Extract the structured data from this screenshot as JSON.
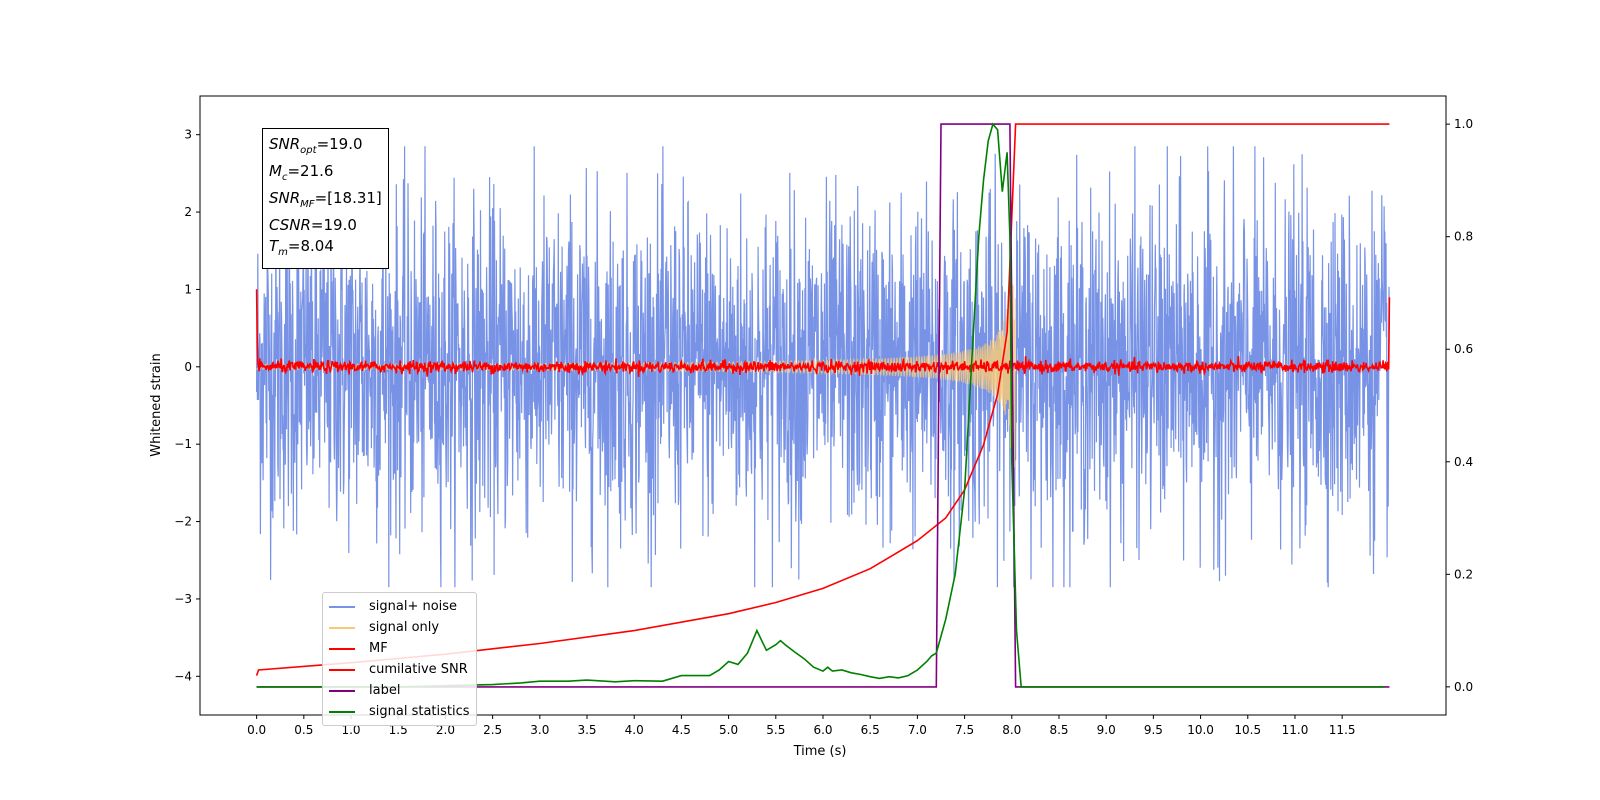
{
  "chart_data": {
    "type": "line",
    "xlabel": "Time (s)",
    "ylabel": "Whitened strain",
    "xlim": [
      -0.6,
      12.6
    ],
    "ylim": [
      -4.5,
      3.5
    ],
    "ylim_right": [
      -0.05,
      1.05
    ],
    "x_ticks": [
      "0.0",
      "0.5",
      "1.0",
      "1.5",
      "2.0",
      "2.5",
      "3.0",
      "3.5",
      "4.0",
      "4.5",
      "5.0",
      "5.5",
      "6.0",
      "6.5",
      "7.0",
      "7.5",
      "8.0",
      "8.5",
      "9.0",
      "9.5",
      "10.0",
      "10.5",
      "11.0",
      "11.5"
    ],
    "y_ticks": [
      "3",
      "2",
      "1",
      "0",
      "−1",
      "−2",
      "−3",
      "−4"
    ],
    "y_right_ticks": [
      "1.0",
      "0.8",
      "0.6",
      "0.4",
      "0.2",
      "0.0"
    ],
    "legend_position": "lower-left",
    "grid": false,
    "annotations": {
      "snr_opt": "19.0",
      "mc": "21.6",
      "snr_mf": "[18.31]",
      "csnr": "19.0",
      "tm": "8.04"
    },
    "series": [
      {
        "name": "signal+ noise",
        "color": "#7893e6",
        "axis": "left",
        "kind": "noise",
        "time_range": [
          0.0,
          12.0
        ],
        "typical_amplitude": 1.4,
        "peak_amplitude": 2.85
      },
      {
        "name": "signal only",
        "color": "#f6c97a",
        "axis": "left",
        "kind": "chirp",
        "time_range": [
          0.0,
          8.04
        ],
        "peak_amplitude": 1.3
      },
      {
        "name": "MF",
        "color": "#ff0000",
        "axis": "left",
        "kind": "noise",
        "time_range": [
          0.0,
          12.0
        ],
        "typical_amplitude": 0.07
      },
      {
        "name": "cumilative SNR",
        "color": "#ff0000",
        "axis": "right",
        "x": [
          0.0,
          0.02,
          1.0,
          2.0,
          3.0,
          4.0,
          5.0,
          5.5,
          6.0,
          6.5,
          7.0,
          7.3,
          7.5,
          7.7,
          7.85,
          7.95,
          8.04,
          12.0
        ],
        "y": [
          0.02,
          0.03,
          0.043,
          0.058,
          0.077,
          0.1,
          0.13,
          0.15,
          0.175,
          0.21,
          0.26,
          0.3,
          0.35,
          0.43,
          0.52,
          0.63,
          1.0,
          1.0
        ]
      },
      {
        "name": "label",
        "color": "#800080",
        "axis": "right",
        "x": [
          0.0,
          7.2,
          7.25,
          7.98,
          8.04,
          12.0
        ],
        "y": [
          0.0,
          0.0,
          1.0,
          1.0,
          0.0,
          0.0
        ]
      },
      {
        "name": "signal statistics",
        "color": "#008000",
        "axis": "right",
        "x": [
          0.0,
          0.5,
          1.0,
          1.5,
          2.0,
          2.5,
          2.8,
          3.0,
          3.3,
          3.5,
          3.8,
          4.0,
          4.3,
          4.5,
          4.8,
          4.9,
          5.0,
          5.1,
          5.2,
          5.25,
          5.3,
          5.4,
          5.5,
          5.55,
          5.6,
          5.7,
          5.8,
          5.9,
          6.0,
          6.05,
          6.1,
          6.2,
          6.3,
          6.4,
          6.5,
          6.6,
          6.7,
          6.8,
          6.9,
          7.0,
          7.1,
          7.15,
          7.2,
          7.3,
          7.4,
          7.5,
          7.55,
          7.6,
          7.65,
          7.7,
          7.75,
          7.8,
          7.85,
          7.9,
          7.95,
          7.98,
          8.0,
          8.05,
          8.1,
          8.15,
          8.5,
          10.0,
          11.0,
          11.95
        ],
        "y": [
          0.0,
          0.0,
          0.0,
          0.0,
          0.002,
          0.004,
          0.007,
          0.01,
          0.01,
          0.012,
          0.009,
          0.011,
          0.01,
          0.02,
          0.02,
          0.03,
          0.045,
          0.04,
          0.06,
          0.08,
          0.1,
          0.065,
          0.075,
          0.082,
          0.075,
          0.062,
          0.05,
          0.035,
          0.028,
          0.035,
          0.028,
          0.03,
          0.025,
          0.022,
          0.018,
          0.015,
          0.018,
          0.016,
          0.02,
          0.03,
          0.045,
          0.055,
          0.06,
          0.12,
          0.2,
          0.35,
          0.5,
          0.65,
          0.8,
          0.9,
          0.97,
          1.0,
          0.99,
          0.88,
          0.95,
          0.8,
          0.4,
          0.1,
          0.0,
          0.0,
          0.0,
          0.0,
          0.0,
          0.0
        ]
      }
    ]
  }
}
